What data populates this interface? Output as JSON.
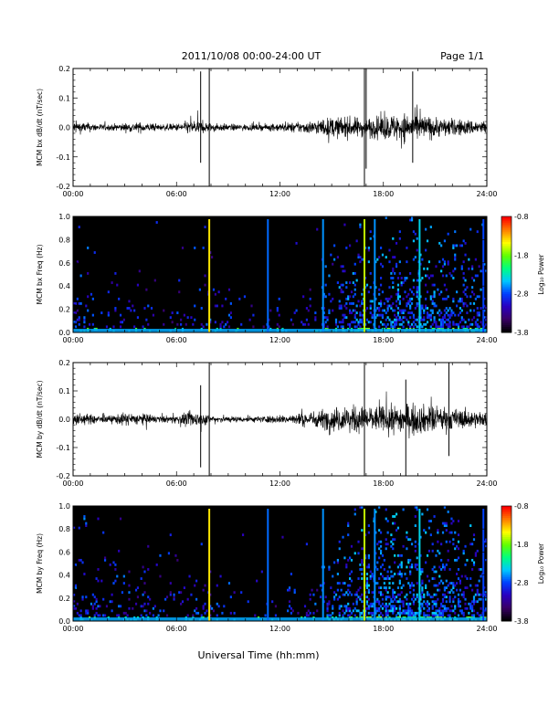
{
  "header": {
    "title": "2011/10/08  00:00-24:00 UT",
    "page": "Page 1/1"
  },
  "footer": {
    "xlabel": "Universal Time (hh:mm)"
  },
  "colors": {
    "trace": "#000000",
    "spectrogram_bg": "#000000",
    "colormap": [
      "#000000",
      "#3a0066",
      "#2a00c0",
      "#0040ff",
      "#00c8ff",
      "#00ff80",
      "#60ff00",
      "#ffff00",
      "#ff8000",
      "#ff0000"
    ]
  },
  "chart_data": [
    {
      "type": "line",
      "id": "bx_dbdt",
      "ylabel": "MCM bx dB/dt (nT/sec)",
      "xlim": [
        0,
        24
      ],
      "ylim": [
        -0.2,
        0.2
      ],
      "xticks": [
        "00:00",
        "06:00",
        "12:00",
        "18:00",
        "24:00"
      ],
      "yticks": [
        "-0.2",
        "-0.1",
        "0.0",
        "0.1",
        "0.2"
      ],
      "envelope": {
        "hours": [
          0,
          1,
          2,
          3,
          4,
          5,
          6,
          7,
          8,
          9,
          10,
          11,
          12,
          13,
          14,
          15,
          16,
          17,
          18,
          19,
          20,
          21,
          22,
          23,
          24
        ],
        "amplitude": [
          0.04,
          0.025,
          0.018,
          0.025,
          0.03,
          0.018,
          0.022,
          0.045,
          0.025,
          0.02,
          0.018,
          0.018,
          0.025,
          0.03,
          0.04,
          0.06,
          0.06,
          0.055,
          0.07,
          0.085,
          0.08,
          0.06,
          0.05,
          0.045,
          0.04
        ]
      },
      "spikes": [
        {
          "hour": 7.4,
          "min": -0.12,
          "max": 0.19
        },
        {
          "hour": 7.9,
          "min": -0.21,
          "max": 0.21
        },
        {
          "hour": 16.9,
          "min": -0.21,
          "max": 0.21
        },
        {
          "hour": 17.0,
          "min": -0.14,
          "max": 0.21
        },
        {
          "hour": 19.7,
          "min": -0.12,
          "max": 0.19
        }
      ]
    },
    {
      "type": "heatmap",
      "id": "bx_freq",
      "ylabel": "MCM bx Freq (Hz)",
      "xlim": [
        0,
        24
      ],
      "ylim": [
        0,
        1.0
      ],
      "xticks": [
        "00:00",
        "06:00",
        "12:00",
        "18:00",
        "24:00"
      ],
      "yticks": [
        "0.0",
        "0.2",
        "0.4",
        "0.6",
        "0.8",
        "1.0"
      ],
      "colorbar": {
        "label": "Log₁₀ Power",
        "range": [
          -3.8,
          -0.8
        ],
        "ticks": [
          "-0.8",
          "-1.8",
          "-2.8",
          "-3.8"
        ]
      },
      "activity_hours": [
        0,
        2,
        4,
        6,
        8,
        10,
        12,
        14,
        16,
        18,
        20,
        22,
        24
      ],
      "activity_level": [
        0.25,
        0.12,
        0.12,
        0.1,
        0.18,
        0.08,
        0.08,
        0.15,
        0.45,
        0.5,
        0.55,
        0.45,
        0.4
      ],
      "vertical_lines": [
        {
          "hour": 7.9,
          "level": -1.4
        },
        {
          "hour": 11.3,
          "level": -2.7
        },
        {
          "hour": 14.5,
          "level": -2.6
        },
        {
          "hour": 16.9,
          "level": -1.6
        },
        {
          "hour": 17.5,
          "level": -2.6
        },
        {
          "hour": 20.1,
          "level": -2.4
        },
        {
          "hour": 23.8,
          "level": -2.8
        }
      ]
    },
    {
      "type": "line",
      "id": "by_dbdt",
      "ylabel": "MCM by dB/dt (nT/sec)",
      "xlim": [
        0,
        24
      ],
      "ylim": [
        -0.2,
        0.2
      ],
      "xticks": [
        "00:00",
        "06:00",
        "12:00",
        "18:00",
        "24:00"
      ],
      "yticks": [
        "-0.2",
        "-0.1",
        "0.0",
        "0.1",
        "0.2"
      ],
      "envelope": {
        "hours": [
          0,
          1,
          2,
          3,
          4,
          5,
          6,
          7,
          8,
          9,
          10,
          11,
          12,
          13,
          14,
          15,
          16,
          17,
          18,
          19,
          20,
          21,
          22,
          23,
          24
        ],
        "amplitude": [
          0.04,
          0.03,
          0.02,
          0.04,
          0.035,
          0.02,
          0.025,
          0.05,
          0.025,
          0.02,
          0.018,
          0.02,
          0.025,
          0.035,
          0.05,
          0.07,
          0.08,
          0.08,
          0.08,
          0.09,
          0.09,
          0.08,
          0.065,
          0.055,
          0.045
        ]
      },
      "spikes": [
        {
          "hour": 7.4,
          "min": -0.17,
          "max": 0.12
        },
        {
          "hour": 7.9,
          "min": -0.21,
          "max": 0.21
        },
        {
          "hour": 16.9,
          "min": -0.21,
          "max": 0.21
        },
        {
          "hour": 19.3,
          "min": -0.21,
          "max": 0.14
        },
        {
          "hour": 21.8,
          "min": -0.13,
          "max": 0.21
        }
      ]
    },
    {
      "type": "heatmap",
      "id": "by_freq",
      "ylabel": "MCM by Freq (Hz)",
      "xlim": [
        0,
        24
      ],
      "ylim": [
        0,
        1.0
      ],
      "xticks": [
        "00:00",
        "06:00",
        "12:00",
        "18:00",
        "24:00"
      ],
      "yticks": [
        "0.0",
        "0.2",
        "0.4",
        "0.6",
        "0.8",
        "1.0"
      ],
      "colorbar": {
        "label": "Log₁₀ Power",
        "range": [
          -3.8,
          -0.8
        ],
        "ticks": [
          "-0.8",
          "-1.8",
          "-2.8",
          "-3.8"
        ]
      },
      "activity_hours": [
        0,
        2,
        4,
        6,
        8,
        10,
        12,
        14,
        16,
        18,
        20,
        22,
        24
      ],
      "activity_level": [
        0.3,
        0.2,
        0.2,
        0.12,
        0.2,
        0.12,
        0.1,
        0.2,
        0.5,
        0.6,
        0.6,
        0.5,
        0.45
      ],
      "vertical_lines": [
        {
          "hour": 7.9,
          "level": -1.4
        },
        {
          "hour": 11.3,
          "level": -2.7
        },
        {
          "hour": 14.5,
          "level": -2.6
        },
        {
          "hour": 16.9,
          "level": -1.6
        },
        {
          "hour": 17.5,
          "level": -2.6
        },
        {
          "hour": 20.1,
          "level": -2.4
        },
        {
          "hour": 23.8,
          "level": -2.8
        }
      ]
    }
  ]
}
